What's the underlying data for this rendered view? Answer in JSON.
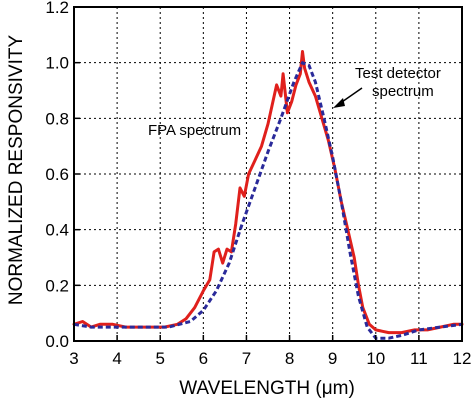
{
  "chart_data": {
    "type": "line",
    "xlabel": "WAVELENGTH (μm)",
    "ylabel": "NORMALIZED RESPONSIVITY",
    "xlim": [
      3,
      12
    ],
    "ylim": [
      0,
      1.2
    ],
    "x_ticks": [
      3,
      4,
      5,
      6,
      7,
      8,
      9,
      10,
      11,
      12
    ],
    "y_ticks": [
      0.0,
      0.2,
      0.4,
      0.6,
      0.8,
      1.0,
      1.2
    ],
    "x_tick_labels": [
      "3",
      "4",
      "5",
      "6",
      "7",
      "8",
      "9",
      "10",
      "11",
      "12"
    ],
    "y_tick_labels": [
      "0.0",
      "0.2",
      "0.4",
      "0.6",
      "0.8",
      "1.0",
      "1.2"
    ],
    "grid": true,
    "series": [
      {
        "name": "FPA spectrum",
        "color": "#e0201c",
        "style": "solid",
        "points": [
          [
            3.0,
            0.06
          ],
          [
            3.2,
            0.07
          ],
          [
            3.4,
            0.05
          ],
          [
            3.6,
            0.06
          ],
          [
            3.9,
            0.06
          ],
          [
            4.2,
            0.05
          ],
          [
            4.5,
            0.05
          ],
          [
            4.8,
            0.05
          ],
          [
            5.1,
            0.05
          ],
          [
            5.4,
            0.06
          ],
          [
            5.6,
            0.08
          ],
          [
            5.8,
            0.12
          ],
          [
            6.0,
            0.18
          ],
          [
            6.15,
            0.22
          ],
          [
            6.25,
            0.32
          ],
          [
            6.35,
            0.33
          ],
          [
            6.45,
            0.28
          ],
          [
            6.55,
            0.33
          ],
          [
            6.65,
            0.32
          ],
          [
            6.75,
            0.42
          ],
          [
            6.85,
            0.55
          ],
          [
            6.95,
            0.52
          ],
          [
            7.05,
            0.6
          ],
          [
            7.2,
            0.65
          ],
          [
            7.35,
            0.7
          ],
          [
            7.5,
            0.78
          ],
          [
            7.6,
            0.85
          ],
          [
            7.7,
            0.92
          ],
          [
            7.8,
            0.88
          ],
          [
            7.85,
            0.96
          ],
          [
            7.95,
            0.82
          ],
          [
            8.05,
            0.86
          ],
          [
            8.15,
            0.92
          ],
          [
            8.25,
            0.96
          ],
          [
            8.3,
            1.04
          ],
          [
            8.35,
            0.98
          ],
          [
            8.45,
            0.93
          ],
          [
            8.6,
            0.88
          ],
          [
            8.75,
            0.8
          ],
          [
            8.9,
            0.72
          ],
          [
            9.05,
            0.62
          ],
          [
            9.2,
            0.5
          ],
          [
            9.35,
            0.4
          ],
          [
            9.5,
            0.3
          ],
          [
            9.6,
            0.2
          ],
          [
            9.7,
            0.12
          ],
          [
            9.85,
            0.06
          ],
          [
            10.0,
            0.04
          ],
          [
            10.3,
            0.03
          ],
          [
            10.6,
            0.03
          ],
          [
            10.9,
            0.04
          ],
          [
            11.2,
            0.04
          ],
          [
            11.5,
            0.05
          ],
          [
            11.8,
            0.06
          ],
          [
            12.0,
            0.06
          ]
        ]
      },
      {
        "name": "Test detector spectrum",
        "color": "#2a2a9a",
        "style": "dashed",
        "points": [
          [
            3.0,
            0.06
          ],
          [
            3.4,
            0.05
          ],
          [
            4.0,
            0.05
          ],
          [
            4.6,
            0.05
          ],
          [
            5.2,
            0.05
          ],
          [
            5.7,
            0.07
          ],
          [
            6.0,
            0.11
          ],
          [
            6.3,
            0.18
          ],
          [
            6.6,
            0.28
          ],
          [
            6.9,
            0.42
          ],
          [
            7.2,
            0.55
          ],
          [
            7.5,
            0.68
          ],
          [
            7.8,
            0.8
          ],
          [
            8.1,
            0.93
          ],
          [
            8.3,
            1.0
          ],
          [
            8.45,
            0.99
          ],
          [
            8.6,
            0.93
          ],
          [
            8.8,
            0.8
          ],
          [
            9.0,
            0.66
          ],
          [
            9.2,
            0.5
          ],
          [
            9.4,
            0.32
          ],
          [
            9.6,
            0.16
          ],
          [
            9.8,
            0.05
          ],
          [
            10.0,
            0.01
          ],
          [
            10.3,
            0.01
          ],
          [
            10.6,
            0.02
          ],
          [
            11.0,
            0.04
          ],
          [
            11.5,
            0.05
          ],
          [
            12.0,
            0.06
          ]
        ]
      }
    ],
    "annotations": [
      {
        "text": "FPA spectrum"
      },
      {
        "text": "Test detector"
      },
      {
        "text": "spectrum"
      }
    ]
  }
}
